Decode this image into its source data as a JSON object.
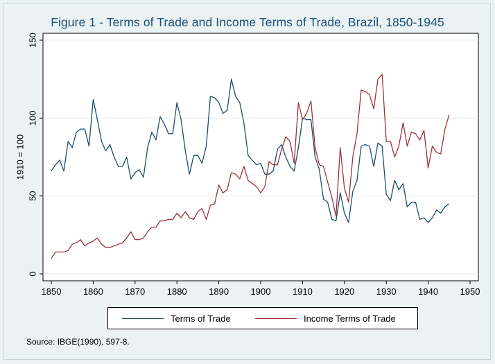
{
  "chart_data": {
    "type": "line",
    "title": "Figure 1 - Terms of Trade and Income Terms of Trade, Brazil, 1850-1945",
    "xlabel": "",
    "ylabel": "1910 = 100",
    "xlim": [
      1850,
      1950
    ],
    "ylim": [
      0,
      150
    ],
    "x_ticks": [
      1850,
      1860,
      1870,
      1880,
      1890,
      1900,
      1910,
      1920,
      1930,
      1940,
      1950
    ],
    "y_ticks": [
      0,
      50,
      100,
      150
    ],
    "grid": true,
    "legend_position": "bottom",
    "x": [
      1850,
      1851,
      1852,
      1853,
      1854,
      1855,
      1856,
      1857,
      1858,
      1859,
      1860,
      1861,
      1862,
      1863,
      1864,
      1865,
      1866,
      1867,
      1868,
      1869,
      1870,
      1871,
      1872,
      1873,
      1874,
      1875,
      1876,
      1877,
      1878,
      1879,
      1880,
      1881,
      1882,
      1883,
      1884,
      1885,
      1886,
      1887,
      1888,
      1889,
      1890,
      1891,
      1892,
      1893,
      1894,
      1895,
      1896,
      1897,
      1898,
      1899,
      1900,
      1901,
      1902,
      1903,
      1904,
      1905,
      1906,
      1907,
      1908,
      1909,
      1910,
      1911,
      1912,
      1913,
      1914,
      1915,
      1916,
      1917,
      1918,
      1919,
      1920,
      1921,
      1922,
      1923,
      1924,
      1925,
      1926,
      1927,
      1928,
      1929,
      1930,
      1931,
      1932,
      1933,
      1934,
      1935,
      1936,
      1937,
      1938,
      1939,
      1940,
      1941,
      1942,
      1943,
      1944,
      1945
    ],
    "series": [
      {
        "name": "Terms of Trade",
        "color": "#1a4d6f",
        "dash": "solid",
        "values": [
          66,
          70,
          73,
          66,
          85,
          81,
          91,
          93,
          93,
          82,
          112,
          99,
          85,
          79,
          83,
          75,
          69,
          69,
          75,
          61,
          65,
          67,
          62,
          81,
          91,
          86,
          101,
          96,
          90,
          90,
          110,
          99,
          79,
          64,
          76,
          76,
          71,
          82,
          114,
          113,
          110,
          103,
          105,
          125,
          114,
          110,
          97,
          76,
          73,
          70,
          71,
          64,
          64,
          66,
          80,
          83,
          75,
          69,
          66,
          81,
          100,
          99,
          99,
          75,
          67,
          48,
          46,
          35,
          34,
          52,
          39,
          33,
          53,
          60,
          82,
          83,
          82,
          69,
          84,
          82,
          51,
          47,
          60,
          54,
          58,
          43,
          46,
          46,
          35,
          36,
          33,
          36,
          41,
          39,
          43,
          45
        ]
      },
      {
        "name": "Income Terms of Trade",
        "color": "#9c3136",
        "dash": "solid",
        "values": [
          10,
          14,
          14,
          14,
          15,
          19,
          20,
          22,
          18,
          20,
          21,
          23,
          19,
          17,
          17,
          18,
          19,
          20,
          23,
          27,
          22,
          22,
          23,
          27,
          30,
          30,
          34,
          34,
          35,
          35,
          39,
          36,
          40,
          36,
          35,
          40,
          42,
          35,
          44,
          45,
          57,
          52,
          54,
          65,
          64,
          61,
          69,
          60,
          58,
          56,
          52,
          56,
          72,
          70,
          70,
          80,
          88,
          85,
          71,
          110,
          99,
          103,
          111,
          81,
          70,
          69,
          59,
          49,
          37,
          81,
          55,
          46,
          75,
          90,
          118,
          117,
          115,
          106,
          125,
          128,
          85,
          85,
          75,
          82,
          97,
          82,
          91,
          90,
          86,
          92,
          68,
          82,
          78,
          77,
          93,
          102
        ]
      }
    ]
  },
  "legend": {
    "items": [
      {
        "label": "Terms of Trade",
        "color": "#1a4d6f"
      },
      {
        "label": "Income Terms of Trade",
        "color": "#9c3136"
      }
    ]
  },
  "source": "Source: IBGE(1990), 597-8."
}
